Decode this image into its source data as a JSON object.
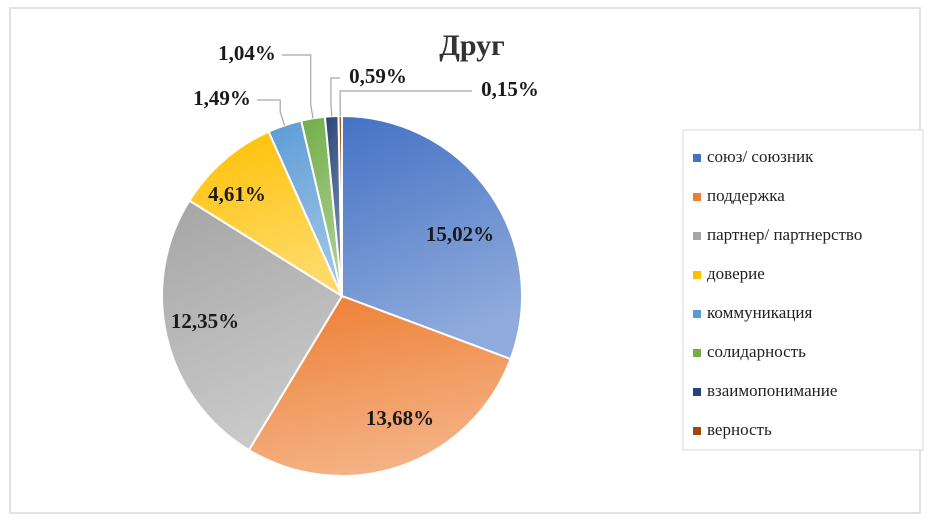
{
  "chart_data": {
    "type": "pie",
    "title": "Друг",
    "categories": [
      "союз/ союзник",
      "поддержка",
      "партнер/ партнерство",
      "доверие",
      "коммуникация",
      "солидарность",
      "взаимопонимание",
      "верность"
    ],
    "values": [
      15.02,
      13.68,
      12.35,
      4.61,
      1.49,
      1.04,
      0.59,
      0.15
    ],
    "value_labels": [
      "15,02%",
      "13,68%",
      "12,35%",
      "4,61%",
      "1,49%",
      "1,04%",
      "0,59%",
      "0,15%"
    ],
    "colors": [
      "#4472c4",
      "#ed7d31",
      "#a5a5a5",
      "#ffc000",
      "#5b9bd5",
      "#70ad47",
      "#264478",
      "#9e480e"
    ],
    "legend": "right"
  }
}
